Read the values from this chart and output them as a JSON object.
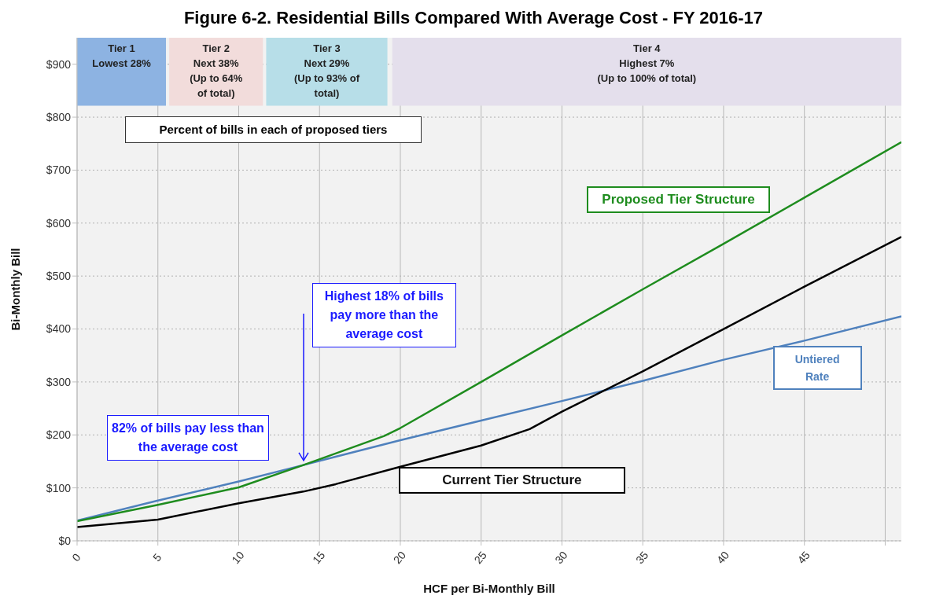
{
  "chart_data": {
    "type": "line",
    "title": "Figure 6-2. Residential Bills Compared With Average Cost - FY 2016-17",
    "xlabel": "HCF per Bi-Monthly Bill",
    "ylabel": "Bi-Monthly Bill",
    "xlim": [
      0,
      51
    ],
    "xticks": [
      0,
      5,
      10,
      15,
      20,
      25,
      30,
      35,
      40,
      45,
      {
        "value": 50,
        "label": null
      }
    ],
    "ylim": [
      0,
      950
    ],
    "yticks": [
      {
        "value": 0,
        "label": "$0"
      },
      {
        "value": 100,
        "label": "$100"
      },
      {
        "value": 200,
        "label": "$200"
      },
      {
        "value": 300,
        "label": "$300"
      },
      {
        "value": 400,
        "label": "$400"
      },
      {
        "value": 500,
        "label": "$500"
      },
      {
        "value": 600,
        "label": "$600"
      },
      {
        "value": 700,
        "label": "$700"
      },
      {
        "value": 800,
        "label": "$800"
      },
      {
        "value": 900,
        "label": "$900"
      }
    ],
    "grid": true,
    "legend": false,
    "marker": "none",
    "line_style": "solid",
    "series": [
      {
        "name": "Untiered Rate",
        "color": "#4f81bd",
        "x": [
          0,
          5,
          10,
          14,
          15,
          20,
          25,
          30,
          35,
          40,
          45,
          51
        ],
        "values": [
          38,
          76,
          112,
          143,
          151,
          190,
          227,
          264,
          302,
          342,
          378,
          424
        ]
      },
      {
        "name": "Proposed Tier Structure",
        "color": "#1e8c1e",
        "x": [
          0,
          5,
          10,
          14,
          19,
          20,
          25,
          30,
          35,
          40,
          45,
          51
        ],
        "values": [
          37,
          68,
          101,
          143,
          198,
          213,
          300,
          388,
          475,
          561,
          648,
          753
        ]
      },
      {
        "name": "Current Tier Structure",
        "color": "#000000",
        "x": [
          0,
          5,
          10,
          14,
          16,
          20,
          25,
          28,
          30,
          35,
          40,
          45,
          51
        ],
        "values": [
          26,
          40,
          71,
          93,
          107,
          140,
          180,
          211,
          244,
          320,
          400,
          480,
          574
        ]
      }
    ],
    "bands": [
      {
        "axis": "x",
        "from": 0,
        "to": 5.5,
        "label": "Tier 1\nLowest 28%",
        "color": "#8db3e2"
      },
      {
        "axis": "x",
        "from": 5.7,
        "to": 11.5,
        "label": "Tier 2\nNext 38%\n(Up  to  64%\nof total)",
        "color": "#f2dcdb"
      },
      {
        "axis": "x",
        "from": 11.7,
        "to": 19.2,
        "label": "Tier 3\nNext  29%\n(Up  to  93% of\ntotal)",
        "color": "#b7dee8"
      },
      {
        "axis": "x",
        "from": 19.5,
        "to": 51,
        "label": "Tier 4\nHighest 7%\n(Up to 100% of total)",
        "color": "#e4dfec"
      }
    ],
    "annotations": [
      "Percent of bills in each of proposed tiers",
      "Highest 18% of bills pay more than the average cost",
      "82% of bills pay less than the average cost"
    ]
  }
}
